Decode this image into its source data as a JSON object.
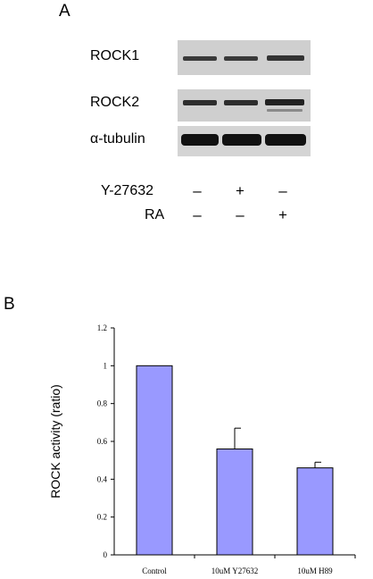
{
  "panel_a": {
    "letter": "A",
    "blots": [
      {
        "label": "ROCK1"
      },
      {
        "label": "ROCK2"
      },
      {
        "label": "α-tubulin"
      }
    ],
    "treatments": [
      {
        "label": "Y-27632",
        "signs": [
          "–",
          "+",
          "–"
        ]
      },
      {
        "label": "RA",
        "signs": [
          "–",
          "–",
          "+"
        ]
      }
    ]
  },
  "panel_b": {
    "letter": "B"
  },
  "chart_data": {
    "type": "bar",
    "categories": [
      "Control",
      "10uM Y27632",
      "10uM H89"
    ],
    "values": [
      1.0,
      0.56,
      0.46
    ],
    "errors": [
      0,
      0.11,
      0.03
    ],
    "ylabel": "ROCK activity (ratio)",
    "xlabel": "",
    "ylim": [
      0,
      1.2
    ],
    "yticks": [
      "0",
      "0.2",
      "0.4",
      "0.6",
      "0.8",
      "1",
      "1.2"
    ],
    "grid": false,
    "bar_color": "#9999ff"
  }
}
